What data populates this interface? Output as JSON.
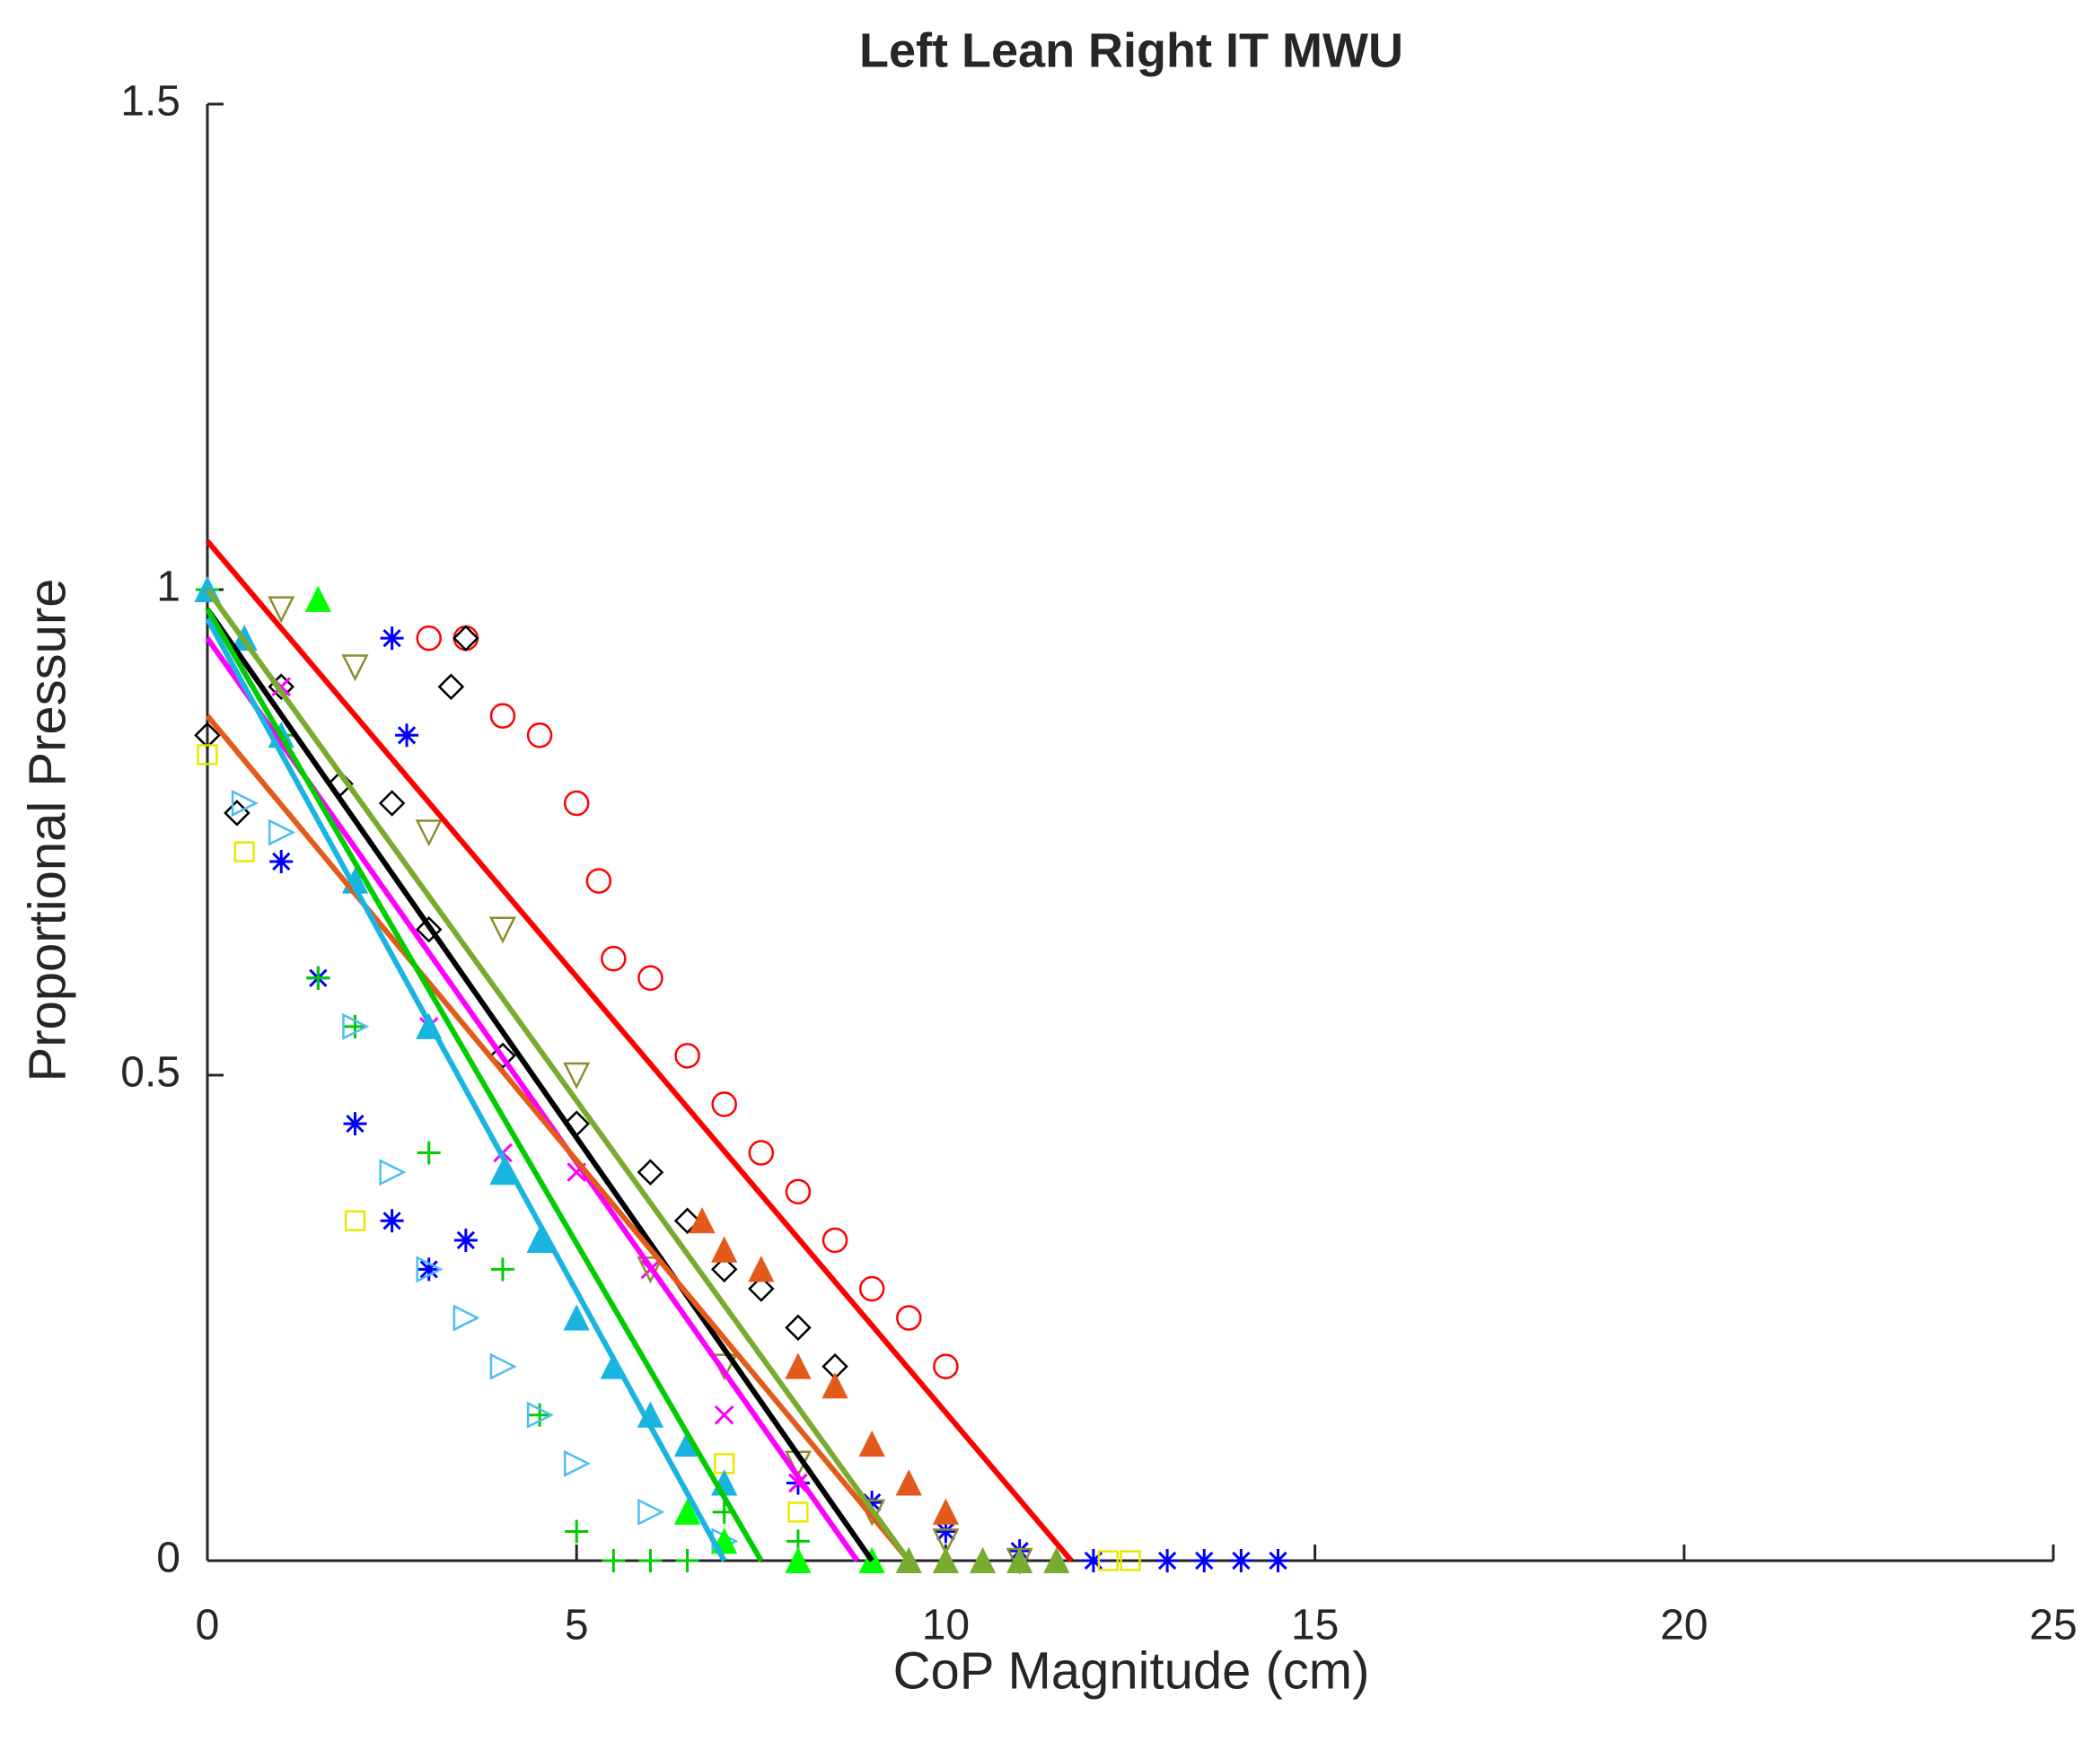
{
  "chart_data": {
    "type": "scatter",
    "title": "Left Lean Right IT MWU",
    "xlabel": "CoP Magnitude (cm)",
    "ylabel": "Proportional Pressure",
    "xlim": [
      0,
      25
    ],
    "ylim": [
      0,
      1.5
    ],
    "xticks": [
      0,
      5,
      10,
      15,
      20,
      25
    ],
    "yticks": [
      0,
      0.5,
      1,
      1.5
    ],
    "series": [
      {
        "color": "#ff0000",
        "marker": "circle",
        "x": [
          3,
          3.5,
          4,
          4.5,
          5,
          5.3,
          5.5,
          6,
          6.5,
          7,
          7.5,
          8,
          8.5,
          9,
          9.5,
          10
        ],
        "values": [
          0.95,
          0.95,
          0.87,
          0.85,
          0.78,
          0.7,
          0.62,
          0.6,
          0.52,
          0.47,
          0.42,
          0.38,
          0.33,
          0.28,
          0.25,
          0.2
        ]
      },
      {
        "color": "#000000",
        "marker": "diamond",
        "x": [
          0,
          0.4,
          1,
          1.8,
          2.5,
          3,
          3.3,
          3.5,
          4,
          5,
          6,
          6.5,
          7,
          7.5,
          8,
          8.5
        ],
        "values": [
          0.85,
          0.77,
          0.9,
          0.8,
          0.78,
          0.65,
          0.9,
          0.95,
          0.52,
          0.45,
          0.4,
          0.35,
          0.3,
          0.28,
          0.24,
          0.2
        ]
      },
      {
        "color": "#0000ff",
        "marker": "asterisk",
        "x": [
          1,
          1.5,
          2,
          2.5,
          3,
          3.5,
          2.5,
          2.7,
          8,
          9,
          10,
          11,
          12,
          13,
          13.5,
          14,
          14.5
        ],
        "values": [
          0.72,
          0.6,
          0.45,
          0.35,
          0.3,
          0.33,
          0.95,
          0.85,
          0.08,
          0.06,
          0.03,
          0.01,
          0,
          0,
          0,
          0,
          0
        ]
      },
      {
        "color": "#00cc00",
        "marker": "plus",
        "x": [
          0,
          1,
          1.5,
          2,
          3,
          4,
          4.5,
          5,
          5.5,
          6,
          6.5,
          7,
          8
        ],
        "values": [
          1,
          0.85,
          0.6,
          0.55,
          0.42,
          0.3,
          0.15,
          0.03,
          0,
          0,
          0,
          0.05,
          0.02
        ]
      },
      {
        "color": "#4dbeee",
        "marker": "triangle-right",
        "x": [
          0.5,
          1,
          2,
          2.5,
          3,
          3.5,
          4,
          4.5,
          5,
          6,
          7
        ],
        "values": [
          0.78,
          0.75,
          0.55,
          0.4,
          0.3,
          0.25,
          0.2,
          0.15,
          0.1,
          0.05,
          0.02
        ]
      },
      {
        "color": "#ff00ff",
        "marker": "x",
        "x": [
          1,
          2,
          3,
          4,
          5,
          6,
          7,
          8
        ],
        "values": [
          0.9,
          0.7,
          0.55,
          0.42,
          0.4,
          0.3,
          0.15,
          0.08
        ]
      },
      {
        "color": "#8c8c2e",
        "marker": "triangle-down",
        "x": [
          1,
          2,
          3,
          4,
          5,
          6,
          7,
          8,
          9,
          10,
          11
        ],
        "values": [
          0.98,
          0.92,
          0.75,
          0.65,
          0.5,
          0.3,
          0.2,
          0.1,
          0.05,
          0.02,
          0
        ]
      },
      {
        "color": "#e8e800",
        "marker": "square",
        "x": [
          0,
          0.5,
          2,
          7,
          8,
          12.2,
          12.5
        ],
        "values": [
          0.83,
          0.73,
          0.35,
          0.1,
          0.05,
          0,
          0
        ]
      },
      {
        "color": "#1ab4e0",
        "marker": "triangle-up-filled",
        "x": [
          0,
          0.5,
          1,
          2,
          3,
          4,
          4.5,
          5,
          5.5,
          6,
          6.5,
          7
        ],
        "values": [
          1,
          0.95,
          0.85,
          0.7,
          0.55,
          0.4,
          0.33,
          0.25,
          0.2,
          0.15,
          0.12,
          0.08
        ]
      },
      {
        "color": "#e35b1a",
        "marker": "triangle-up-filled",
        "x": [
          6.7,
          7,
          7.5,
          8,
          8.5,
          9,
          9.5,
          10
        ],
        "values": [
          0.35,
          0.32,
          0.3,
          0.2,
          0.18,
          0.12,
          0.08,
          0.05
        ]
      },
      {
        "color": "#00ff00",
        "marker": "triangle-up-filled",
        "x": [
          1.5,
          6.5,
          7,
          8,
          9
        ],
        "values": [
          0.99,
          0.05,
          0.02,
          0,
          0
        ]
      },
      {
        "color": "#77ac30",
        "marker": "triangle-up-filled",
        "x": [
          9.5,
          10,
          10.5,
          11,
          11.5
        ],
        "values": [
          0,
          0,
          0,
          0,
          0
        ]
      }
    ],
    "lines": [
      {
        "color": "#ff0000",
        "x": [
          0,
          11.7
        ],
        "values": [
          1.05,
          0
        ]
      },
      {
        "color": "#000000",
        "x": [
          0,
          9
        ],
        "values": [
          0.98,
          0
        ]
      },
      {
        "color": "#ff00ff",
        "x": [
          0,
          8.8
        ],
        "values": [
          0.95,
          0
        ]
      },
      {
        "color": "#e35b1a",
        "x": [
          0,
          9.5
        ],
        "values": [
          0.87,
          0
        ]
      },
      {
        "color": "#00cc00",
        "x": [
          0,
          7.5
        ],
        "values": [
          0.98,
          0
        ]
      },
      {
        "color": "#1ab4e0",
        "x": [
          0,
          7
        ],
        "values": [
          0.97,
          0
        ]
      },
      {
        "color": "#77ac30",
        "x": [
          0,
          9.5
        ],
        "values": [
          1,
          0
        ]
      }
    ]
  }
}
